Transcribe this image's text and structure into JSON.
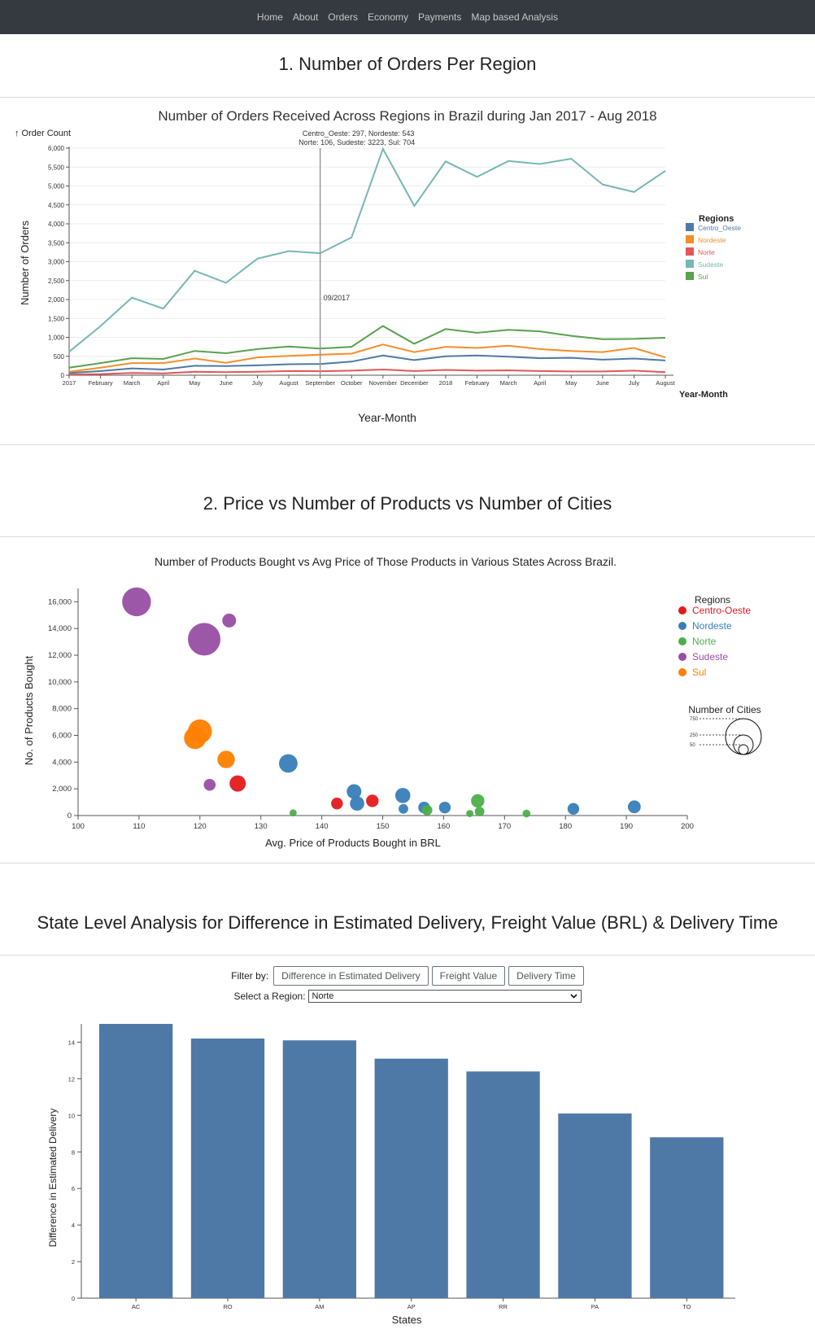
{
  "nav": {
    "items": [
      "Home",
      "About",
      "Orders",
      "Economy",
      "Payments",
      "Map based Analysis"
    ]
  },
  "section1": {
    "title": "1. Number of Orders Per Region"
  },
  "section2": {
    "title": "2. Price vs Number of Products vs Number of Cities"
  },
  "section3": {
    "title": "State Level Analysis for Difference in Estimated Delivery, Freight Value (BRL) & Delivery Time"
  },
  "filter": {
    "label": "Filter by:",
    "buttons": [
      "Difference in Estimated Delivery",
      "Freight Value",
      "Delivery Time"
    ],
    "region_label": "Select a Region:",
    "region_value": "Norte",
    "dropdown_icon": "chevron-down-icon"
  },
  "colors": {
    "navbar": "#343a40",
    "Centro_Oeste": "#4e79a7",
    "Nordeste": "#f28e2b",
    "Norte": "#e15759",
    "Sudeste": "#76b7b2",
    "Sul": "#59a14f",
    "bubble_Centro-Oeste": "#e41a1c",
    "bubble_Nordeste": "#377eb8",
    "bubble_Norte": "#4daf4a",
    "bubble_Sudeste": "#984ea3",
    "bubble_Sul": "#ff7f00",
    "bar": "#4e79a7"
  },
  "chart_data": [
    {
      "type": "line",
      "title": "Number of Orders Received Across Regions in Brazil during Jan 2017 - Aug 2018",
      "ylabel": "Number of Orders",
      "xlabel": "Year-Month",
      "y_axis_title": "↑ Order Count",
      "x_axis_title": "Year-Month",
      "ylim": [
        0,
        6000
      ],
      "yticks": [
        "0",
        "500",
        "1,000",
        "1,500",
        "2,000",
        "2,500",
        "3,000",
        "3,500",
        "4,000",
        "4,500",
        "5,000",
        "5,500",
        "6,000"
      ],
      "categories": [
        "2017",
        "February",
        "March",
        "April",
        "May",
        "June",
        "July",
        "August",
        "September",
        "October",
        "November",
        "December",
        "2018",
        "February",
        "March",
        "April",
        "May",
        "June",
        "July",
        "August"
      ],
      "series": [
        {
          "name": "Centro_Oeste",
          "values": [
            60,
            110,
            180,
            150,
            250,
            240,
            260,
            290,
            297,
            360,
            520,
            400,
            500,
            520,
            490,
            450,
            460,
            410,
            440,
            390
          ]
        },
        {
          "name": "Nordeste",
          "values": [
            90,
            200,
            320,
            320,
            440,
            330,
            470,
            510,
            543,
            570,
            810,
            610,
            750,
            720,
            780,
            690,
            640,
            610,
            720,
            470
          ]
        },
        {
          "name": "Norte",
          "values": [
            20,
            30,
            60,
            50,
            90,
            80,
            90,
            110,
            106,
            120,
            150,
            110,
            140,
            120,
            130,
            110,
            100,
            100,
            120,
            80
          ]
        },
        {
          "name": "Sudeste",
          "values": [
            620,
            1300,
            2050,
            1760,
            2760,
            2440,
            3080,
            3280,
            3223,
            3640,
            5980,
            4470,
            5650,
            5240,
            5660,
            5580,
            5720,
            5040,
            4840,
            5400
          ]
        },
        {
          "name": "Sul",
          "values": [
            200,
            320,
            450,
            430,
            640,
            580,
            690,
            760,
            704,
            750,
            1300,
            830,
            1220,
            1120,
            1200,
            1160,
            1040,
            950,
            960,
            990
          ]
        }
      ],
      "legend_title": "Regions",
      "legend_position": "right",
      "legend": [
        "Centro_Oeste",
        "Nordeste",
        "Norte",
        "Sudeste",
        "Sul"
      ],
      "grid": true,
      "hover": {
        "label": "09/2017",
        "tooltip_line1": "Centro_Oeste: 297, Nordeste: 543",
        "tooltip_line2": "Norte: 106, Sudeste: 3223, Sul: 704"
      }
    },
    {
      "type": "scatter",
      "title": "Number of Products Bought vs Avg Price of Those Products in Various States Across Brazil.",
      "xlabel": "Avg. Price of Products Bought in BRL",
      "ylabel": "No. of Products Bought",
      "xlim": [
        100,
        200
      ],
      "ylim": [
        0,
        17000
      ],
      "xticks": [
        "100",
        "110",
        "120",
        "130",
        "140",
        "150",
        "160",
        "170",
        "180",
        "190",
        "200"
      ],
      "yticks": [
        "0",
        "2,000",
        "4,000",
        "6,000",
        "8,000",
        "10,000",
        "12,000",
        "14,000",
        "16,000"
      ],
      "legend_title": "Regions",
      "legend_position": "right",
      "legend": [
        "Centro-Oeste",
        "Nordeste",
        "Norte",
        "Sudeste",
        "Sul"
      ],
      "size_legend_title": "Number of Cities",
      "size_legend_values": [
        "750",
        "250",
        "50"
      ],
      "points": [
        {
          "region": "Sudeste",
          "x": 109.6,
          "y": 16000,
          "cities": 650
        },
        {
          "region": "Sudeste",
          "x": 120.7,
          "y": 13200,
          "cities": 850
        },
        {
          "region": "Sudeste",
          "x": 124.8,
          "y": 14600,
          "cities": 110
        },
        {
          "region": "Sudeste",
          "x": 121.6,
          "y": 2300,
          "cities": 75
        },
        {
          "region": "Sul",
          "x": 120.0,
          "y": 6300,
          "cities": 420
        },
        {
          "region": "Sul",
          "x": 119.2,
          "y": 5800,
          "cities": 350
        },
        {
          "region": "Sul",
          "x": 124.3,
          "y": 4200,
          "cities": 200
        },
        {
          "region": "Centro-Oeste",
          "x": 126.2,
          "y": 2400,
          "cities": 170
        },
        {
          "region": "Centro-Oeste",
          "x": 142.5,
          "y": 900,
          "cities": 70
        },
        {
          "region": "Centro-Oeste",
          "x": 148.3,
          "y": 1100,
          "cities": 85
        },
        {
          "region": "Nordeste",
          "x": 134.5,
          "y": 3900,
          "cities": 230
        },
        {
          "region": "Nordeste",
          "x": 145.3,
          "y": 1800,
          "cities": 130
        },
        {
          "region": "Nordeste",
          "x": 145.8,
          "y": 900,
          "cities": 120
        },
        {
          "region": "Nordeste",
          "x": 153.3,
          "y": 1500,
          "cities": 140
        },
        {
          "region": "Nordeste",
          "x": 153.4,
          "y": 500,
          "cities": 40
        },
        {
          "region": "Nordeste",
          "x": 156.8,
          "y": 600,
          "cities": 70
        },
        {
          "region": "Nordeste",
          "x": 160.2,
          "y": 600,
          "cities": 70
        },
        {
          "region": "Nordeste",
          "x": 181.3,
          "y": 500,
          "cities": 70
        },
        {
          "region": "Nordeste",
          "x": 191.3,
          "y": 650,
          "cities": 90
        },
        {
          "region": "Norte",
          "x": 135.3,
          "y": 200,
          "cities": 15
        },
        {
          "region": "Norte",
          "x": 157.3,
          "y": 400,
          "cities": 50
        },
        {
          "region": "Norte",
          "x": 164.3,
          "y": 150,
          "cities": 15
        },
        {
          "region": "Norte",
          "x": 165.6,
          "y": 1100,
          "cities": 100
        },
        {
          "region": "Norte",
          "x": 165.9,
          "y": 300,
          "cities": 40
        },
        {
          "region": "Norte",
          "x": 173.6,
          "y": 150,
          "cities": 20
        }
      ]
    },
    {
      "type": "bar",
      "xlabel": "States",
      "ylabel": "Difference in Estimated Delivery",
      "ylim": [
        0,
        15
      ],
      "yticks": [
        "0",
        "2",
        "4",
        "6",
        "8",
        "10",
        "12",
        "14"
      ],
      "categories": [
        "AC",
        "RO",
        "AM",
        "AP",
        "RR",
        "PA",
        "TO"
      ],
      "values": [
        15.0,
        14.2,
        14.1,
        13.1,
        12.4,
        10.1,
        8.8
      ]
    }
  ]
}
